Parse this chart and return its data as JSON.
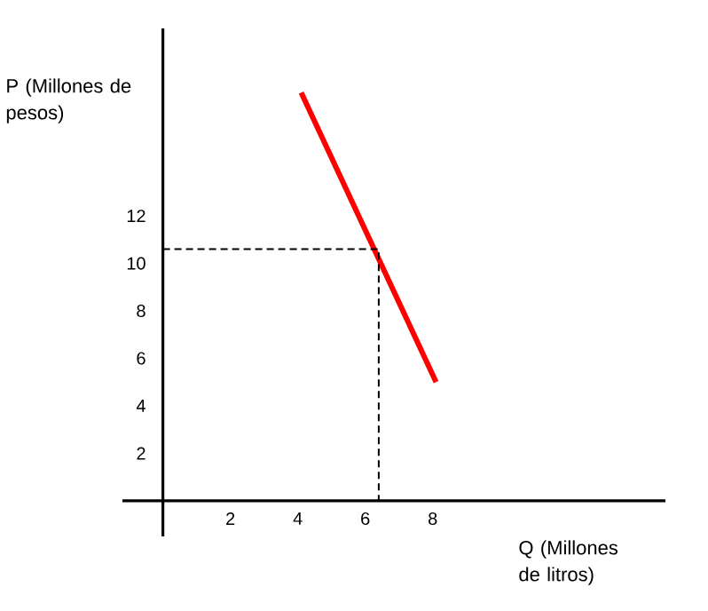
{
  "chart_data": {
    "type": "line",
    "xlabel": "Q (Millones de litros)",
    "ylabel": "P (Millones de pesos)",
    "xlim": [
      -1.2,
      14.9
    ],
    "ylim": [
      -1.5,
      19.9
    ],
    "xticks": [
      2,
      4,
      6,
      8
    ],
    "yticks": [
      2,
      4,
      6,
      8,
      10,
      12
    ],
    "series": [
      {
        "color": "#ff0000",
        "x": [
          4.1,
          8.1
        ],
        "values": [
          17.2,
          5.0
        ],
        "line_style": "solid"
      },
      {
        "color": "#000000",
        "x": [
          0,
          6.4,
          6.4
        ],
        "values": [
          10.6,
          10.6,
          0
        ],
        "line_style": "dashed"
      }
    ]
  }
}
